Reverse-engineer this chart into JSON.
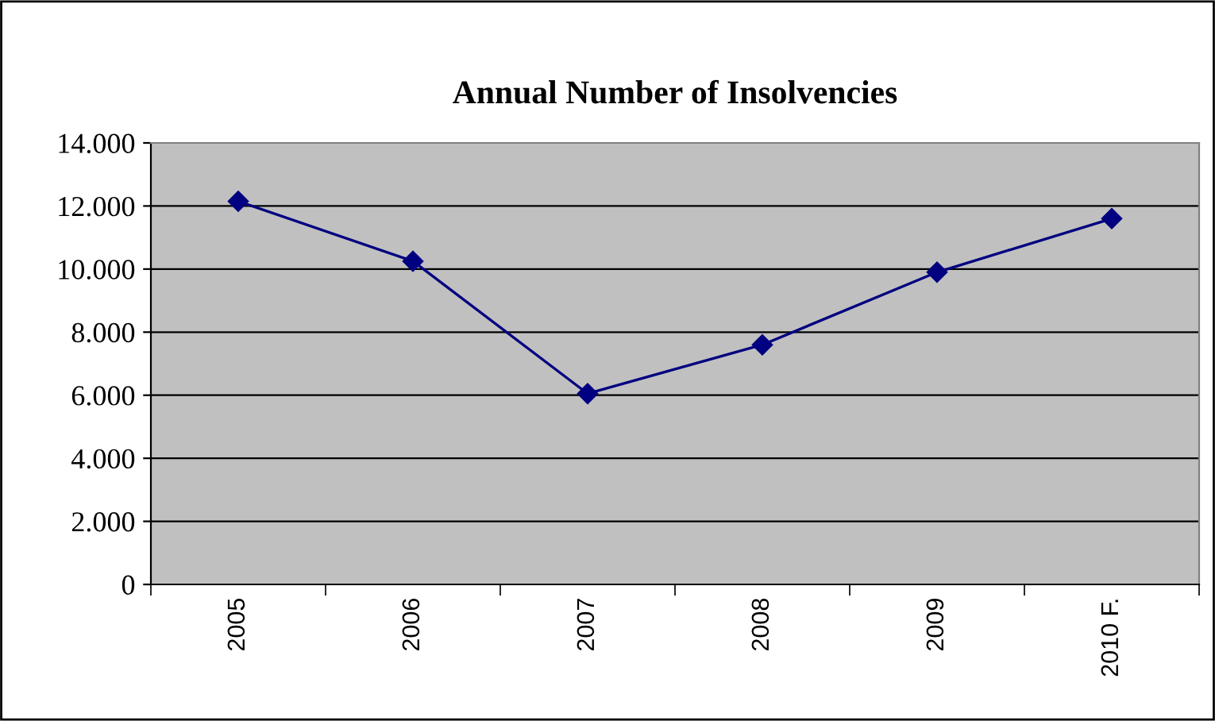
{
  "chart_data": {
    "type": "line",
    "title": "Annual Number of Insolvencies",
    "categories": [
      "2005",
      "2006",
      "2007",
      "2008",
      "2009",
      "2010 F."
    ],
    "series": [
      {
        "color": "#000080",
        "values": [
          12150,
          10250,
          6050,
          7600,
          9900,
          11600
        ]
      }
    ],
    "ylim": [
      0,
      14000
    ],
    "yticks": [
      {
        "value": 0,
        "label": "0"
      },
      {
        "value": 2000,
        "label": "2.000"
      },
      {
        "value": 4000,
        "label": "4.000"
      },
      {
        "value": 6000,
        "label": "6.000"
      },
      {
        "value": 8000,
        "label": "8.000"
      },
      {
        "value": 10000,
        "label": "10.000"
      },
      {
        "value": 12000,
        "label": "12.000"
      },
      {
        "value": 14000,
        "label": "14.000"
      }
    ],
    "grid": "y",
    "marker": "diamond",
    "line_style": "solid",
    "legend": false
  }
}
